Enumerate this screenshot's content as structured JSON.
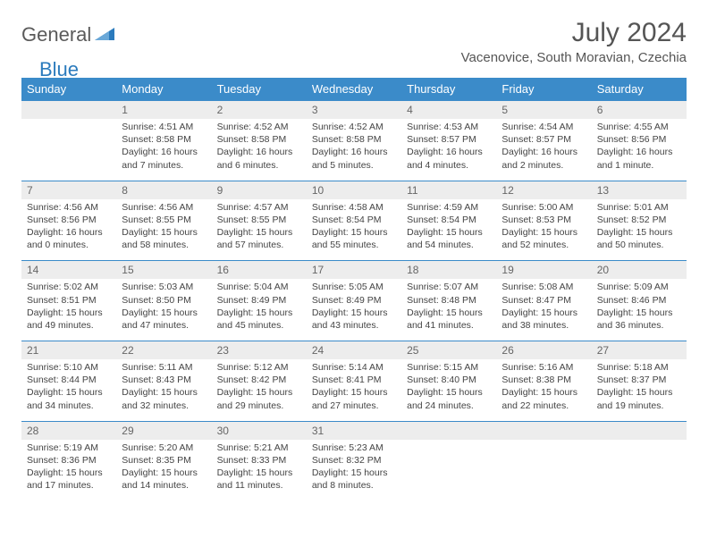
{
  "logo": {
    "general": "General",
    "blue": "Blue"
  },
  "title": "July 2024",
  "location": "Vacenovice, South Moravian, Czechia",
  "weekdays": [
    "Sunday",
    "Monday",
    "Tuesday",
    "Wednesday",
    "Thursday",
    "Friday",
    "Saturday"
  ],
  "colors": {
    "header_bg": "#3b8bc9",
    "header_text": "#ffffff",
    "daynum_bg": "#ededed",
    "daynum_border": "#3b8bc9",
    "logo_general": "#5a5a5a",
    "logo_blue": "#2b7bbd",
    "body_text": "#444"
  },
  "typography": {
    "title_fontsize": 30,
    "location_fontsize": 15,
    "weekday_fontsize": 13,
    "daynum_fontsize": 12,
    "detail_fontsize": 10.5
  },
  "grid": {
    "start_blank_cells": 1,
    "days_in_month": 31
  },
  "days": [
    {
      "n": 1,
      "sunrise": "4:51 AM",
      "sunset": "8:58 PM",
      "daylight": "16 hours and 7 minutes."
    },
    {
      "n": 2,
      "sunrise": "4:52 AM",
      "sunset": "8:58 PM",
      "daylight": "16 hours and 6 minutes."
    },
    {
      "n": 3,
      "sunrise": "4:52 AM",
      "sunset": "8:58 PM",
      "daylight": "16 hours and 5 minutes."
    },
    {
      "n": 4,
      "sunrise": "4:53 AM",
      "sunset": "8:57 PM",
      "daylight": "16 hours and 4 minutes."
    },
    {
      "n": 5,
      "sunrise": "4:54 AM",
      "sunset": "8:57 PM",
      "daylight": "16 hours and 2 minutes."
    },
    {
      "n": 6,
      "sunrise": "4:55 AM",
      "sunset": "8:56 PM",
      "daylight": "16 hours and 1 minute."
    },
    {
      "n": 7,
      "sunrise": "4:56 AM",
      "sunset": "8:56 PM",
      "daylight": "16 hours and 0 minutes."
    },
    {
      "n": 8,
      "sunrise": "4:56 AM",
      "sunset": "8:55 PM",
      "daylight": "15 hours and 58 minutes."
    },
    {
      "n": 9,
      "sunrise": "4:57 AM",
      "sunset": "8:55 PM",
      "daylight": "15 hours and 57 minutes."
    },
    {
      "n": 10,
      "sunrise": "4:58 AM",
      "sunset": "8:54 PM",
      "daylight": "15 hours and 55 minutes."
    },
    {
      "n": 11,
      "sunrise": "4:59 AM",
      "sunset": "8:54 PM",
      "daylight": "15 hours and 54 minutes."
    },
    {
      "n": 12,
      "sunrise": "5:00 AM",
      "sunset": "8:53 PM",
      "daylight": "15 hours and 52 minutes."
    },
    {
      "n": 13,
      "sunrise": "5:01 AM",
      "sunset": "8:52 PM",
      "daylight": "15 hours and 50 minutes."
    },
    {
      "n": 14,
      "sunrise": "5:02 AM",
      "sunset": "8:51 PM",
      "daylight": "15 hours and 49 minutes."
    },
    {
      "n": 15,
      "sunrise": "5:03 AM",
      "sunset": "8:50 PM",
      "daylight": "15 hours and 47 minutes."
    },
    {
      "n": 16,
      "sunrise": "5:04 AM",
      "sunset": "8:49 PM",
      "daylight": "15 hours and 45 minutes."
    },
    {
      "n": 17,
      "sunrise": "5:05 AM",
      "sunset": "8:49 PM",
      "daylight": "15 hours and 43 minutes."
    },
    {
      "n": 18,
      "sunrise": "5:07 AM",
      "sunset": "8:48 PM",
      "daylight": "15 hours and 41 minutes."
    },
    {
      "n": 19,
      "sunrise": "5:08 AM",
      "sunset": "8:47 PM",
      "daylight": "15 hours and 38 minutes."
    },
    {
      "n": 20,
      "sunrise": "5:09 AM",
      "sunset": "8:46 PM",
      "daylight": "15 hours and 36 minutes."
    },
    {
      "n": 21,
      "sunrise": "5:10 AM",
      "sunset": "8:44 PM",
      "daylight": "15 hours and 34 minutes."
    },
    {
      "n": 22,
      "sunrise": "5:11 AM",
      "sunset": "8:43 PM",
      "daylight": "15 hours and 32 minutes."
    },
    {
      "n": 23,
      "sunrise": "5:12 AM",
      "sunset": "8:42 PM",
      "daylight": "15 hours and 29 minutes."
    },
    {
      "n": 24,
      "sunrise": "5:14 AM",
      "sunset": "8:41 PM",
      "daylight": "15 hours and 27 minutes."
    },
    {
      "n": 25,
      "sunrise": "5:15 AM",
      "sunset": "8:40 PM",
      "daylight": "15 hours and 24 minutes."
    },
    {
      "n": 26,
      "sunrise": "5:16 AM",
      "sunset": "8:38 PM",
      "daylight": "15 hours and 22 minutes."
    },
    {
      "n": 27,
      "sunrise": "5:18 AM",
      "sunset": "8:37 PM",
      "daylight": "15 hours and 19 minutes."
    },
    {
      "n": 28,
      "sunrise": "5:19 AM",
      "sunset": "8:36 PM",
      "daylight": "15 hours and 17 minutes."
    },
    {
      "n": 29,
      "sunrise": "5:20 AM",
      "sunset": "8:35 PM",
      "daylight": "15 hours and 14 minutes."
    },
    {
      "n": 30,
      "sunrise": "5:21 AM",
      "sunset": "8:33 PM",
      "daylight": "15 hours and 11 minutes."
    },
    {
      "n": 31,
      "sunrise": "5:23 AM",
      "sunset": "8:32 PM",
      "daylight": "15 hours and 8 minutes."
    }
  ],
  "labels": {
    "sunrise": "Sunrise: ",
    "sunset": "Sunset: ",
    "daylight": "Daylight: "
  }
}
